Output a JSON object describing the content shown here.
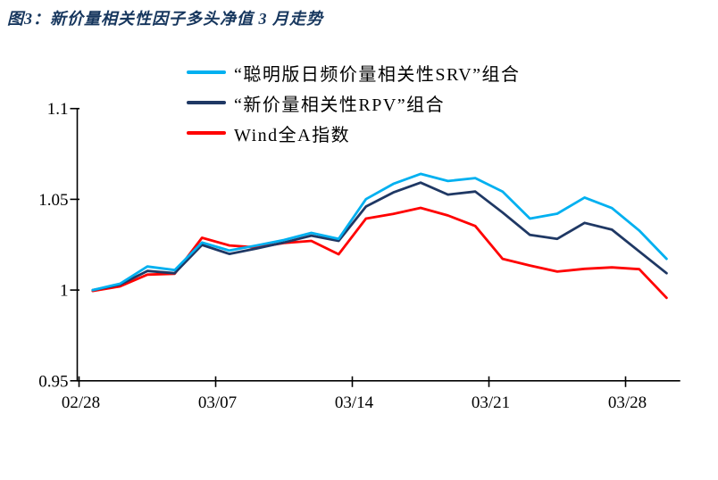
{
  "figure": {
    "title": "图3：新价量相关性因子多头净值 3 月走势",
    "title_color": "#17375E"
  },
  "chart_data": {
    "type": "line",
    "title": "图3：新价量相关性因子多头净值 3 月走势",
    "x": [
      "02/28",
      "03/03",
      "03/04",
      "03/05",
      "03/06",
      "03/07",
      "03/10",
      "03/11",
      "03/12",
      "03/13",
      "03/14",
      "03/17",
      "03/18",
      "03/19",
      "03/20",
      "03/21",
      "03/24",
      "03/25",
      "03/26",
      "03/27",
      "03/28",
      "03/31"
    ],
    "x_tick_labels": [
      "02/28",
      "03/07",
      "03/14",
      "03/21",
      "03/28"
    ],
    "x_tick_indices": [
      0,
      5,
      10,
      15,
      20
    ],
    "ylim": [
      0.95,
      1.1
    ],
    "ytick_values": [
      0.95,
      1.0,
      1.05,
      1.1
    ],
    "ytick_labels": [
      "0.95",
      "1",
      "1.05",
      "1.1"
    ],
    "grid": false,
    "legend_position": "inside-top-left",
    "axis_color": "#000000",
    "series": [
      {
        "name": "“聪明版日频价量相关性SRV”组合",
        "color": "#00B0F0",
        "values": [
          1.0,
          1.0035,
          1.013,
          1.011,
          1.0262,
          1.0218,
          1.0246,
          1.0276,
          1.0315,
          1.0282,
          1.0501,
          1.0585,
          1.064,
          1.0601,
          1.0617,
          1.0543,
          1.0394,
          1.0421,
          1.051,
          1.0452,
          1.0328,
          1.0172
        ]
      },
      {
        "name": "“新价量相关性RPV”组合",
        "color": "#1F3864",
        "values": [
          1.0,
          1.003,
          1.0105,
          1.0093,
          1.0249,
          1.0199,
          1.0229,
          1.0262,
          1.03,
          1.0271,
          1.046,
          1.0538,
          1.0592,
          1.0526,
          1.0543,
          1.0427,
          1.0304,
          1.0282,
          1.037,
          1.0333,
          1.0213,
          1.0093
        ]
      },
      {
        "name": "Wind全A指数",
        "color": "#FF0000",
        "values": [
          0.9995,
          1.002,
          1.0085,
          1.009,
          1.0288,
          1.0246,
          1.0235,
          1.0259,
          1.0271,
          1.0197,
          1.0394,
          1.042,
          1.0453,
          1.0411,
          1.0353,
          1.0172,
          1.0135,
          1.0102,
          1.0117,
          1.0125,
          1.0115,
          0.9957
        ]
      }
    ]
  }
}
